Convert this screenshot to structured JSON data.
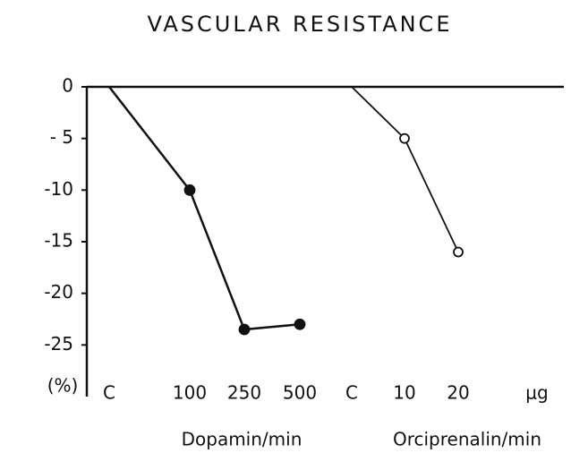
{
  "chart_data": {
    "type": "line",
    "title": "VASCULAR RESISTANCE",
    "y_label": "(%)",
    "categories": [
      "C",
      "100",
      "250",
      "500",
      "C",
      "10",
      "20",
      "μg"
    ],
    "groups": [
      "Dopamin/min",
      "Orciprenalin/min"
    ],
    "series": [
      {
        "name": "Dopamin",
        "color": "#111111",
        "marker": "filled",
        "values": [
          0,
          -10,
          -23.5,
          -23,
          null,
          null,
          null,
          null
        ]
      },
      {
        "name": "Orciprenalin",
        "color": "#111111",
        "marker": "open",
        "values": [
          null,
          null,
          null,
          null,
          0,
          -5,
          -16,
          null
        ]
      }
    ],
    "ylim": [
      -30,
      0
    ],
    "yticks": [
      0,
      {
        "value": -5,
        "label": "- 5"
      },
      -10,
      -15,
      -20,
      -25
    ]
  }
}
